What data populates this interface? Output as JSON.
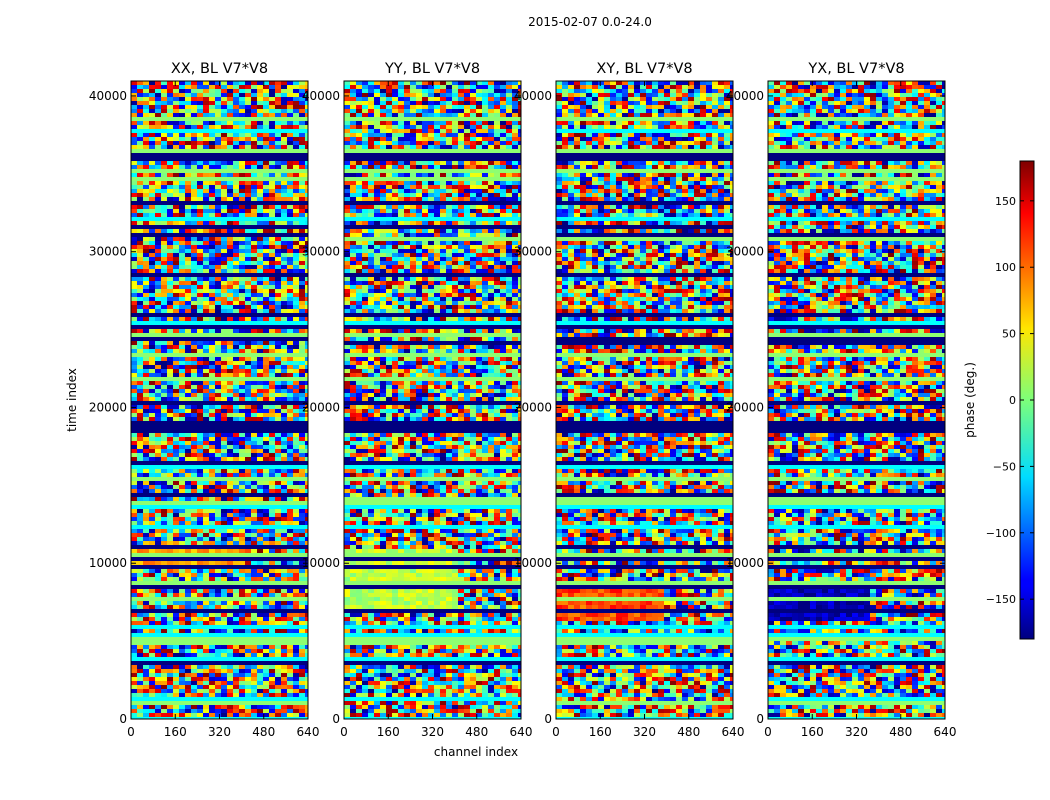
{
  "figure": {
    "suptitle": "2015-02-07 0.0-24.0"
  },
  "chart_data": {
    "type": "heatmap",
    "title": "2015-02-07 0.0-24.0",
    "xlabel": "channel index",
    "ylabel": "time index",
    "xlim": [
      0,
      640
    ],
    "ylim": [
      0,
      40960
    ],
    "xticks": [
      0,
      160,
      320,
      480,
      640
    ],
    "yticks": [
      0,
      10000,
      20000,
      30000,
      40000
    ],
    "colormap": "jet",
    "panels": [
      {
        "title": "XX, BL V7*V8",
        "flat_from": 10000,
        "flat_to": 11000,
        "flat_phase": 80,
        "flat_edge": 400
      },
      {
        "title": "YY, BL V7*V8",
        "flat_from": 7000,
        "flat_to": 11000,
        "flat_phase": 20,
        "flat_edge": 410
      },
      {
        "title": "XY, BL V7*V8",
        "flat_from": 6500,
        "flat_to": 8500,
        "flat_phase": 110,
        "flat_edge": 380
      },
      {
        "title": "YX, BL V7*V8",
        "flat_from": 6500,
        "flat_to": 9000,
        "flat_phase": -160,
        "flat_edge": 360
      }
    ],
    "colorbar": {
      "label": "phase (deg.)",
      "range": [
        -180,
        180
      ],
      "ticks": [
        150,
        100,
        50,
        0,
        -50,
        -100,
        -150
      ],
      "tick_labels": [
        "150",
        "100",
        "50",
        "0",
        "−50",
        "−100",
        "−150"
      ]
    },
    "colors": {
      "background": "#ffffff",
      "axis": "#000000"
    }
  }
}
